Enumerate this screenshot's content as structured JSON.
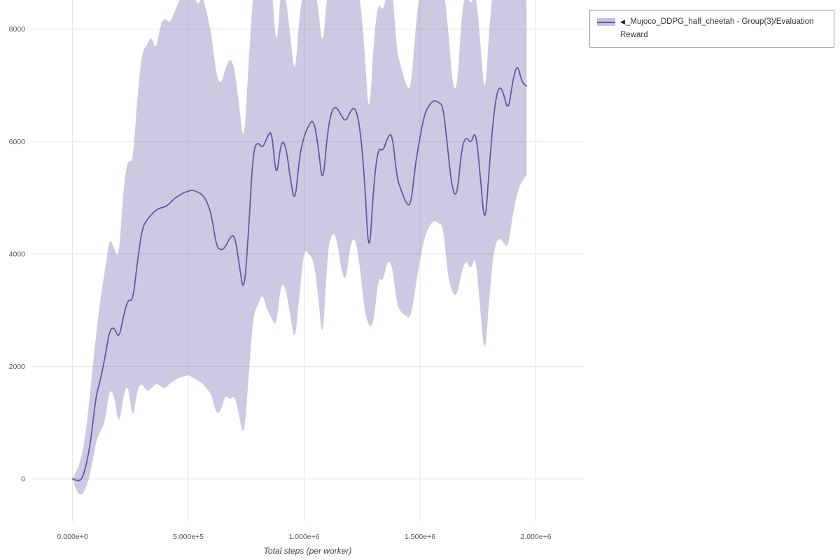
{
  "legend": {
    "marker": "◀",
    "label": "_Mujoco_DDPG_half_cheetah - Group(3)/Evaluation Reward"
  },
  "colors": {
    "line": "#6159a6",
    "band": "rgba(97,89,166,0.32)",
    "band_solid": "#c7c2e1",
    "grid": "#e5e5e5",
    "tick_text": "#555555",
    "legend_border": "#999999",
    "legend_marker": "#222222"
  },
  "chart_data": {
    "type": "line",
    "title": "",
    "xlabel": "Total steps (per worker)",
    "ylabel": "",
    "xlim": [
      -180000,
      2210000
    ],
    "ylim": [
      -760,
      8520
    ],
    "grid": true,
    "legend_position": "top-right-outside",
    "x_tick_values": [
      0,
      500000,
      1000000,
      1500000,
      2000000
    ],
    "x_tick_labels": [
      "0.000e+0",
      "5.000e+5",
      "1.000e+6",
      "1.500e+6",
      "2.000e+6"
    ],
    "y_tick_values": [
      0,
      2000,
      4000,
      6000,
      8000
    ],
    "y_tick_labels": [
      "0",
      "2000",
      "4000",
      "6000",
      "8000"
    ],
    "series": [
      {
        "name": "_Mujoco_DDPG_half_cheetah - Group(3)/Evaluation Reward",
        "x": [
          0,
          20000,
          40000,
          60000,
          80000,
          100000,
          120000,
          140000,
          160000,
          180000,
          200000,
          220000,
          240000,
          260000,
          280000,
          300000,
          320000,
          340000,
          360000,
          380000,
          400000,
          420000,
          440000,
          460000,
          480000,
          500000,
          520000,
          540000,
          560000,
          580000,
          600000,
          620000,
          640000,
          660000,
          680000,
          700000,
          720000,
          740000,
          760000,
          780000,
          800000,
          820000,
          840000,
          860000,
          880000,
          900000,
          920000,
          940000,
          960000,
          980000,
          1000000,
          1020000,
          1040000,
          1060000,
          1080000,
          1100000,
          1120000,
          1140000,
          1160000,
          1180000,
          1200000,
          1220000,
          1240000,
          1260000,
          1280000,
          1300000,
          1320000,
          1340000,
          1360000,
          1380000,
          1400000,
          1420000,
          1440000,
          1460000,
          1480000,
          1500000,
          1520000,
          1540000,
          1560000,
          1580000,
          1600000,
          1620000,
          1640000,
          1660000,
          1680000,
          1700000,
          1720000,
          1740000,
          1760000,
          1780000,
          1800000,
          1820000,
          1840000,
          1860000,
          1880000,
          1900000,
          1920000,
          1940000,
          1960000
        ],
        "mean": [
          0,
          -40,
          -20,
          250,
          700,
          1450,
          1750,
          2150,
          2650,
          2700,
          2480,
          2900,
          3200,
          3150,
          3850,
          4450,
          4600,
          4700,
          4780,
          4820,
          4840,
          4900,
          4990,
          5040,
          5090,
          5120,
          5140,
          5100,
          5060,
          4940,
          4700,
          4150,
          4060,
          4120,
          4300,
          4350,
          3800,
          3260,
          4400,
          5850,
          6000,
          5870,
          6080,
          6220,
          5280,
          6020,
          5950,
          5350,
          4870,
          5750,
          6100,
          6300,
          6400,
          5950,
          5180,
          6150,
          6580,
          6620,
          6460,
          6350,
          6550,
          6620,
          6280,
          5400,
          3820,
          5250,
          5900,
          5820,
          6080,
          6160,
          5350,
          5120,
          4900,
          4850,
          5600,
          6080,
          6500,
          6650,
          6740,
          6700,
          6640,
          5850,
          5120,
          5020,
          5900,
          6100,
          5950,
          6230,
          5400,
          4420,
          5600,
          6580,
          7000,
          6880,
          6520,
          7080,
          7400,
          7050,
          6990
        ],
        "lower": [
          0,
          -250,
          -300,
          -150,
          150,
          650,
          850,
          1000,
          1600,
          1500,
          900,
          1500,
          1700,
          1000,
          1600,
          1700,
          1550,
          1600,
          1700,
          1650,
          1600,
          1700,
          1750,
          1800,
          1820,
          1850,
          1800,
          1750,
          1700,
          1600,
          1500,
          1150,
          1200,
          1500,
          1400,
          1500,
          1100,
          700,
          1800,
          2900,
          3100,
          3300,
          3000,
          2850,
          2700,
          3500,
          3400,
          2900,
          2400,
          3300,
          4100,
          4000,
          3900,
          3300,
          2350,
          4000,
          4400,
          4300,
          3700,
          3500,
          4200,
          4300,
          3800,
          3000,
          2700,
          2750,
          3600,
          3500,
          3900,
          3800,
          3100,
          2950,
          2900,
          2850,
          3400,
          3900,
          4300,
          4500,
          4600,
          4550,
          4500,
          3600,
          3300,
          3250,
          3700,
          3900,
          3700,
          4000,
          3000,
          2100,
          3300,
          4100,
          4300,
          4200,
          4100,
          4700,
          5100,
          5300,
          5400
        ],
        "upper": [
          0,
          150,
          400,
          900,
          1700,
          2500,
          3200,
          3700,
          4300,
          4100,
          3900,
          5200,
          5700,
          5600,
          6800,
          7600,
          7700,
          7900,
          7600,
          8100,
          8200,
          8100,
          8300,
          8500,
          8700,
          8700,
          8700,
          8400,
          8600,
          8300,
          7900,
          7200,
          7000,
          7300,
          7500,
          7300,
          6600,
          5900,
          7400,
          8700,
          8800,
          8500,
          8800,
          8900,
          7500,
          8800,
          8600,
          7900,
          7100,
          8300,
          8700,
          8900,
          8900,
          8400,
          7600,
          8700,
          8900,
          8900,
          8800,
          8700,
          8900,
          8900,
          8600,
          7700,
          6300,
          7800,
          8500,
          8300,
          8700,
          8800,
          7600,
          7300,
          7000,
          6900,
          8000,
          8700,
          8900,
          8900,
          8900,
          8900,
          8800,
          8100,
          7000,
          6900,
          8300,
          8700,
          8400,
          8700,
          7800,
          6700,
          8100,
          8900,
          8900,
          8800,
          8500,
          8900,
          8900,
          8600,
          8500
        ]
      }
    ]
  }
}
